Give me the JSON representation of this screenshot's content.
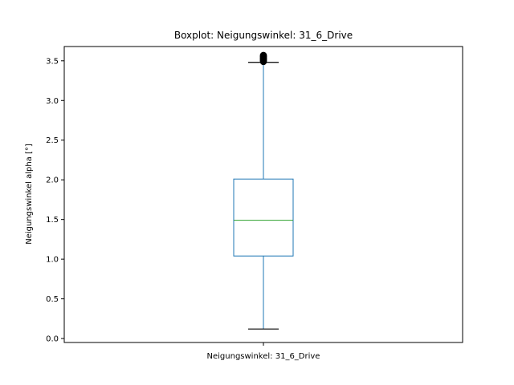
{
  "chart_data": {
    "type": "boxplot",
    "title": "Boxplot: Neigungswinkel: 31_6_Drive",
    "xlabel": "",
    "ylabel": "Neigungswinkel alpha [°]",
    "categories": [
      "Neigungswinkel: 31_6_Drive"
    ],
    "ylim": [
      -0.05,
      3.68
    ],
    "yticks": [
      0.0,
      0.5,
      1.0,
      1.5,
      2.0,
      2.5,
      3.0,
      3.5
    ],
    "ytick_labels": [
      "0.0",
      "0.5",
      "1.0",
      "1.5",
      "2.0",
      "2.5",
      "3.0",
      "3.5"
    ],
    "grid": false,
    "boxes": [
      {
        "whisker_low": 0.12,
        "q1": 1.04,
        "median": 1.49,
        "q3": 2.01,
        "whisker_high": 3.48,
        "outliers": [
          3.49,
          3.5,
          3.5,
          3.51,
          3.52,
          3.52,
          3.53,
          3.53,
          3.54,
          3.55,
          3.55,
          3.56,
          3.57
        ]
      }
    ],
    "colors": {
      "box": "#1f77b4",
      "median": "#2ca02c",
      "cap": "#000000",
      "outlier": "#000000"
    }
  }
}
